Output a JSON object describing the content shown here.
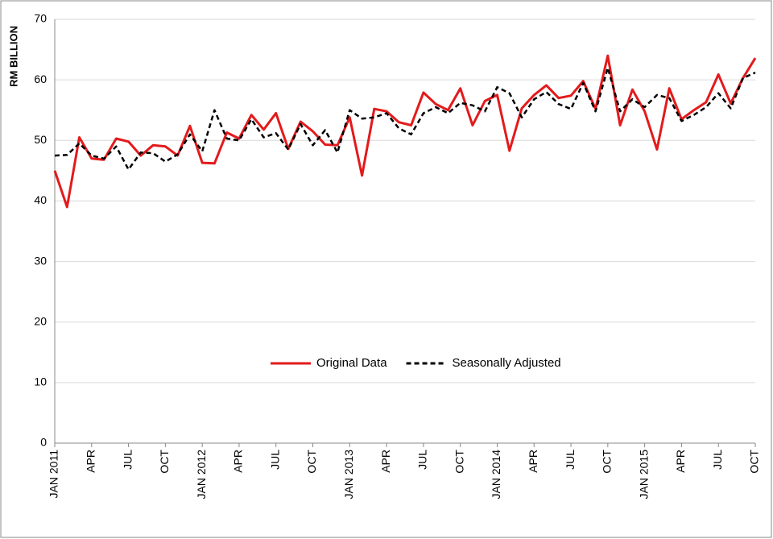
{
  "chart_data": {
    "type": "line",
    "y_label": "RM BILLION",
    "categories": [
      "JAN 2011",
      null,
      null,
      "APR",
      null,
      null,
      "JUL",
      null,
      null,
      "OCT",
      null,
      null,
      "JAN 2012",
      null,
      null,
      "APR",
      null,
      null,
      "JUL",
      null,
      null,
      "OCT",
      null,
      null,
      "JAN 2013",
      null,
      null,
      "APR",
      null,
      null,
      "JUL",
      null,
      null,
      "OCT",
      null,
      null,
      "JAN 2014",
      null,
      null,
      "APR",
      null,
      null,
      "JUL",
      null,
      null,
      "OCT",
      null,
      null,
      "JAN 2015",
      null,
      null,
      "APR",
      null,
      null,
      "JUL",
      null,
      null,
      "OCT"
    ],
    "series": [
      {
        "name": "Original Data",
        "color": "#e31a1c",
        "dash": false,
        "values": [
          45,
          39,
          50.5,
          47,
          46.8,
          50.3,
          49.8,
          47.5,
          49.2,
          49,
          47.5,
          52.4,
          46.3,
          46.2,
          51.3,
          50.3,
          54.2,
          51.8,
          54.5,
          48.6,
          53.1,
          51.5,
          49.3,
          49.2,
          53.8,
          44.2,
          55.2,
          54.8,
          53,
          52.5,
          57.9,
          56,
          55,
          58.6,
          52.5,
          56.5,
          57.5,
          48.3,
          55.3,
          57.5,
          59.1,
          57,
          57.4,
          59.8,
          55.2,
          64,
          52.5,
          58.4,
          54.8,
          48.5,
          58.6,
          53.5,
          55,
          56.3,
          60.9,
          56.1,
          60.3,
          63.6
        ]
      },
      {
        "name": "Seasonally Adjusted",
        "color": "#000000",
        "dash": true,
        "values": [
          47.5,
          47.6,
          49.5,
          47.5,
          47,
          49,
          45.2,
          48,
          47.9,
          46.5,
          47.7,
          51,
          48.2,
          55,
          50.3,
          50,
          53.5,
          50.5,
          51.2,
          48.5,
          52.7,
          49.2,
          51.7,
          48,
          55,
          53.6,
          53.8,
          54.5,
          52,
          51,
          54.5,
          55.5,
          54.5,
          56.2,
          55.8,
          54.8,
          58.8,
          57.8,
          53.8,
          56.8,
          58,
          56,
          55.2,
          59.5,
          54.8,
          62,
          54.8,
          56.8,
          55.5,
          57.5,
          57,
          53.2,
          54.2,
          55.5,
          57.8,
          55.3,
          60.3,
          61.2
        ]
      }
    ],
    "ylim": [
      0,
      70
    ],
    "yticks": [
      0,
      10,
      20,
      30,
      40,
      50,
      60,
      70
    ],
    "grid": true
  }
}
